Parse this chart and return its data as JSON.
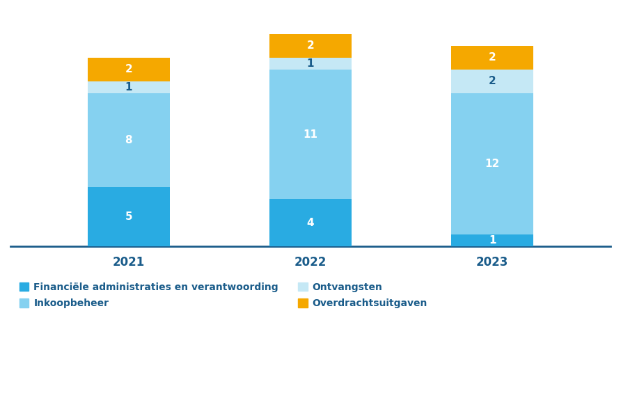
{
  "years": [
    "2021",
    "2022",
    "2023"
  ],
  "financiele_admin": [
    5,
    4,
    1
  ],
  "inkoopbeheer": [
    8,
    11,
    12
  ],
  "ontvangsten": [
    1,
    1,
    2
  ],
  "overdrachtsuitgaven": [
    2,
    2,
    2
  ],
  "color_financiele": "#29abe2",
  "color_inkoopbeheer": "#85d1f0",
  "color_ontvangsten": "#c5e8f5",
  "color_overdrachtsuitgaven": "#f5a800",
  "legend_financiele": "Financiële administraties en verantwoording",
  "legend_inkoopbeheer": "Inkoopbeheer",
  "legend_ontvangsten": "Ontvangsten",
  "legend_overdrachtsuitgaven": "Overdrachtsuitgaven",
  "background_color": "#ffffff",
  "text_color_white": "#ffffff",
  "text_color_dark": "#1a5c8a",
  "bar_width": 0.45,
  "xlabel_color": "#1a5c8a",
  "spine_color": "#1a5c8a",
  "legend_text_color": "#1a5c8a"
}
